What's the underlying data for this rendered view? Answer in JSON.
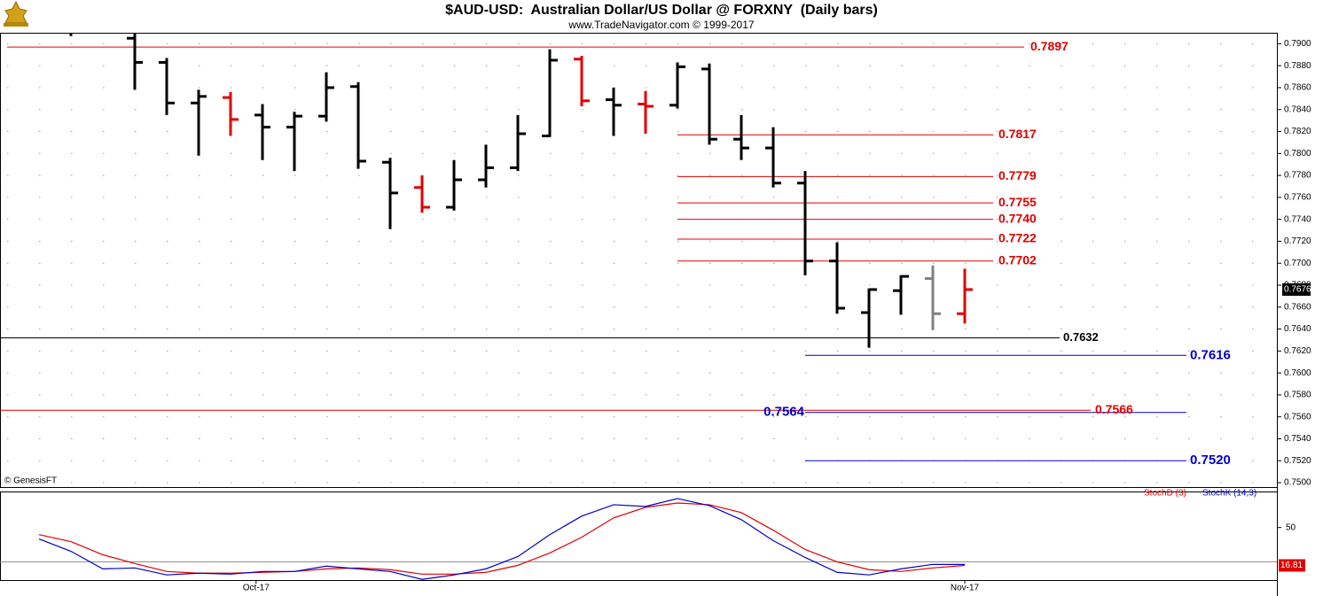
{
  "chart_data": [
    {
      "type": "ohlc",
      "title": "$AUD-USD:  Australian Dollar/US Dollar @ FORXNY  (Daily bars)",
      "subtitle": "www.TradeNavigator.com © 1999-2017",
      "watermark": "© GenesisFT",
      "open": [
        null,
        null,
        null,
        0.7905,
        0.7883,
        0.7846,
        0.7851,
        0.7835,
        0.7824,
        0.7834,
        0.7861,
        0.7792,
        0.7769,
        0.7751,
        0.7776,
        0.7787,
        0.7816,
        0.7886,
        0.7849,
        0.7845,
        0.7844,
        0.7877,
        0.7813,
        0.7805,
        0.7773,
        0.7702,
        0.7655,
        0.7675,
        0.7686,
        0.7654
      ],
      "high": [
        null,
        0.7915,
        null,
        0.7912,
        0.7887,
        0.7858,
        0.7856,
        0.7845,
        0.7838,
        0.7874,
        0.7865,
        0.7796,
        0.778,
        0.7794,
        0.7808,
        0.7835,
        0.7895,
        0.7889,
        0.786,
        0.7857,
        0.7883,
        0.7882,
        0.7835,
        0.7824,
        0.7784,
        0.7719,
        0.7677,
        0.7689,
        0.7698,
        0.7695
      ],
      "low": [
        null,
        0.7907,
        null,
        0.7858,
        0.7835,
        0.7798,
        0.7816,
        0.7794,
        0.7784,
        0.7829,
        0.7786,
        0.7731,
        0.7746,
        0.7748,
        0.7769,
        0.7784,
        0.7815,
        0.7843,
        0.7816,
        0.7818,
        0.7841,
        0.7808,
        0.7794,
        0.7769,
        0.7689,
        0.7654,
        0.7623,
        0.7653,
        0.7639,
        0.7645
      ],
      "close": [
        null,
        null,
        null,
        0.7883,
        0.7846,
        0.7852,
        0.7831,
        0.7824,
        0.7834,
        0.786,
        0.7793,
        0.7764,
        0.7751,
        0.7776,
        0.7787,
        0.7818,
        0.7885,
        0.7848,
        0.7844,
        0.7843,
        0.7879,
        0.7813,
        0.7805,
        0.7773,
        0.7702,
        0.7659,
        0.7676,
        0.7688,
        0.7654,
        0.7676
      ],
      "colors": [
        null,
        "#000000",
        null,
        "#000000",
        "#000000",
        "#000000",
        "#e00000",
        "#000000",
        "#000000",
        "#000000",
        "#000000",
        "#000000",
        "#e00000",
        "#000000",
        "#000000",
        "#000000",
        "#000000",
        "#e00000",
        "#000000",
        "#e00000",
        "#000000",
        "#000000",
        "#000000",
        "#000000",
        "#000000",
        "#000000",
        "#000000",
        "#000000",
        "#808080",
        "#e00000"
      ],
      "ylim": [
        0.7496,
        0.791
      ],
      "yticks": [
        {
          "value": 0.75,
          "label": "0.7500"
        },
        {
          "value": 0.752,
          "label": "0.7520"
        },
        {
          "value": 0.754,
          "label": "0.7540"
        },
        {
          "value": 0.756,
          "label": "0.7560"
        },
        {
          "value": 0.758,
          "label": "0.7580"
        },
        {
          "value": 0.76,
          "label": "0.7600"
        },
        {
          "value": 0.762,
          "label": "0.7620"
        },
        {
          "value": 0.764,
          "label": "0.7640"
        },
        {
          "value": 0.766,
          "label": "0.7660"
        },
        {
          "value": 0.768,
          "label": "0.7680"
        },
        {
          "value": 0.77,
          "label": "0.7700"
        },
        {
          "value": 0.772,
          "label": "0.7720"
        },
        {
          "value": 0.774,
          "label": "0.7740"
        },
        {
          "value": 0.776,
          "label": "0.7760"
        },
        {
          "value": 0.778,
          "label": "0.7780"
        },
        {
          "value": 0.78,
          "label": "0.7800"
        },
        {
          "value": 0.782,
          "label": "0.7820"
        },
        {
          "value": 0.784,
          "label": "0.7840"
        },
        {
          "value": 0.786,
          "label": "0.7860"
        },
        {
          "value": 0.788,
          "label": "0.7880"
        },
        {
          "value": 0.79,
          "label": "0.7900"
        }
      ],
      "xticks": [
        {
          "value": 6.8,
          "label": "Oct-17"
        },
        {
          "value": 29,
          "label": "Nov-17"
        }
      ],
      "grid": true,
      "last_price": {
        "value": 0.7676,
        "label": "0.7676"
      },
      "levels": [
        {
          "value": 0.7897,
          "label": "0.7897",
          "color": "#e00000"
        },
        {
          "value": 0.7817,
          "label": "0.7817",
          "color": "#e00000"
        },
        {
          "value": 0.7779,
          "label": "0.7779",
          "color": "#e00000"
        },
        {
          "value": 0.7755,
          "label": "0.7755",
          "color": "#e00000"
        },
        {
          "value": 0.774,
          "label": "0.7740",
          "color": "#e00000"
        },
        {
          "value": 0.7722,
          "label": "0.7722",
          "color": "#e00000"
        },
        {
          "value": 0.7702,
          "label": "0.7702",
          "color": "#e00000"
        },
        {
          "value": 0.7632,
          "label": "0.7632",
          "color": "#000000"
        },
        {
          "value": 0.7616,
          "label": "0.7616",
          "color": "#0000cc"
        },
        {
          "value": 0.7566,
          "label": "0.7566",
          "color": "#e00000"
        },
        {
          "value": 0.7564,
          "label": "0.7564",
          "color": "#0000cc"
        },
        {
          "value": 0.752,
          "label": "0.7520",
          "color": "#0000cc"
        }
      ]
    },
    {
      "type": "line",
      "series": [
        {
          "name": "StochD (3)",
          "color": "#e00000",
          "values": [
            43.8,
            37.7,
            26.2,
            18.5,
            11.5,
            10.0,
            10.0,
            10.8,
            11.5,
            13.8,
            14.6,
            13.1,
            9.2,
            9.2,
            10.8,
            16.9,
            27.7,
            41.5,
            58.5,
            67.7,
            71.5,
            70.0,
            63.1,
            47.7,
            30.8,
            20.0,
            13.1,
            11.5,
            14.6,
            16.81
          ]
        },
        {
          "name": "StochK (14,3)",
          "color": "#0000cc",
          "values": [
            40.0,
            29.2,
            13.8,
            14.6,
            8.5,
            10.0,
            9.2,
            11.5,
            11.5,
            16.2,
            13.8,
            11.5,
            4.6,
            8.5,
            13.8,
            24.6,
            43.8,
            60.0,
            70.0,
            68.5,
            75.4,
            69.2,
            56.9,
            38.5,
            23.8,
            10.8,
            8.5,
            13.8,
            17.7,
            17.7
          ]
        }
      ],
      "ylim": [
        4,
        80.8
      ],
      "yticks": [
        50
      ],
      "ref_line": 20,
      "last_value": {
        "value": 16.81,
        "label": "16.81"
      }
    }
  ]
}
